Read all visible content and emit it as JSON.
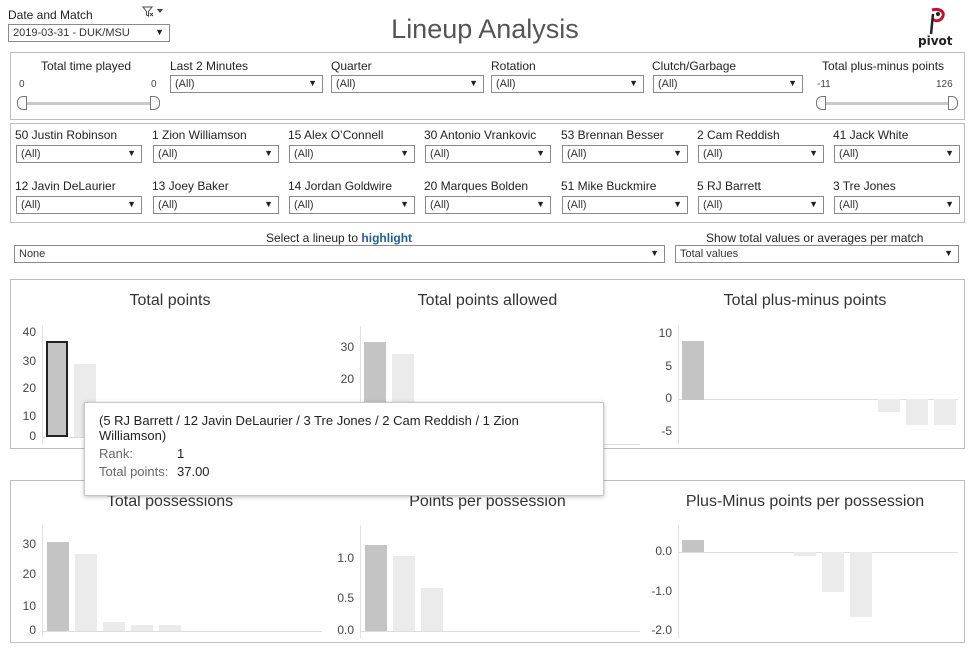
{
  "header": {
    "date_label": "Date and Match",
    "date_value": "2019-03-31 - DUK/MSU",
    "title": "Lineup Analysis",
    "logo_text": "pivot",
    "filter_icon": "clear-filter-icon"
  },
  "filters_top": {
    "time_played": {
      "label": "Total time played",
      "min": "0",
      "max": "0"
    },
    "last2": {
      "label": "Last 2 Minutes",
      "value": "(All)"
    },
    "quarter": {
      "label": "Quarter",
      "value": "(All)"
    },
    "rotation": {
      "label": "Rotation",
      "value": "(All)"
    },
    "clutch": {
      "label": "Clutch/Garbage",
      "value": "(All)"
    },
    "plusminus": {
      "label": "Total plus-minus points",
      "min": "-11",
      "max": "126"
    }
  },
  "players": [
    {
      "label": "50 Justin Robinson",
      "value": "(All)"
    },
    {
      "label": "1 Zion Williamson",
      "value": "(All)"
    },
    {
      "label": "15 Alex O’Connell",
      "value": "(All)"
    },
    {
      "label": "30 Antonio Vrankovic",
      "value": "(All)"
    },
    {
      "label": "53 Brennan Besser",
      "value": "(All)"
    },
    {
      "label": "2 Cam Reddish",
      "value": "(All)"
    },
    {
      "label": "41 Jack White",
      "value": "(All)"
    },
    {
      "label": "12 Javin DeLaurier",
      "value": "(All)"
    },
    {
      "label": "13 Joey Baker",
      "value": "(All)"
    },
    {
      "label": "14 Jordan Goldwire",
      "value": "(All)"
    },
    {
      "label": "20 Marques Bolden",
      "value": "(All)"
    },
    {
      "label": "51 Mike Buckmire",
      "value": "(All)"
    },
    {
      "label": "5 RJ Barrett",
      "value": "(All)"
    },
    {
      "label": "3 Tre Jones",
      "value": "(All)"
    }
  ],
  "highlight": {
    "label_pre": "Select a lineup to ",
    "label_em": "highlight",
    "value": "None"
  },
  "totals": {
    "label": "Show total values or averages per match",
    "value": "Total values"
  },
  "colors": {
    "bar_dark": "#c4c4c4",
    "bar_light": "#ebebeb",
    "highlight_stroke": "#222222",
    "accent": "#1f5f9f"
  },
  "charts": [
    {
      "title": "Total points",
      "ticks": [
        "40",
        "30",
        "20",
        "10",
        "0"
      ]
    },
    {
      "title": "Total points allowed",
      "ticks": [
        "30",
        "20"
      ]
    },
    {
      "title": "Total plus-minus points",
      "ticks": [
        "10",
        "5",
        "0",
        "-5"
      ]
    },
    {
      "title": "Total possessions",
      "ticks": [
        "30",
        "20",
        "10",
        "0"
      ]
    },
    {
      "title": "Points per possession",
      "ticks": [
        "1.0",
        "0.5",
        "0.0"
      ]
    },
    {
      "title": "Plus-Minus points per possession",
      "ticks": [
        "0.0",
        "-1.0",
        "-2.0"
      ]
    }
  ],
  "chart_data": [
    {
      "type": "bar",
      "title": "Total points",
      "ylim": [
        0,
        40
      ],
      "values": [
        37,
        28
      ]
    },
    {
      "type": "bar",
      "title": "Total points allowed",
      "ylim": [
        15,
        33
      ],
      "values": [
        32,
        28
      ]
    },
    {
      "type": "bar",
      "title": "Total plus-minus points",
      "ylim": [
        -6,
        11
      ],
      "values": [
        9,
        -2,
        -4,
        -4
      ]
    },
    {
      "type": "bar",
      "title": "Total possessions",
      "ylim": [
        0,
        33
      ],
      "values": [
        31,
        27,
        3,
        2,
        2
      ]
    },
    {
      "type": "bar",
      "title": "Points per possession",
      "ylim": [
        0,
        1.3
      ],
      "values": [
        1.19,
        1.04,
        0.6
      ]
    },
    {
      "type": "bar",
      "title": "Plus-Minus points per possession",
      "ylim": [
        -2.2,
        0.4
      ],
      "values": [
        0.3,
        -0.1,
        -1.0,
        -1.65
      ]
    }
  ],
  "tooltip": {
    "lineup": "(5 RJ Barrett / 12 Javin DeLaurier / 3 Tre Jones / 2 Cam Reddish / 1 Zion Williamson)",
    "rank_label": "Rank:",
    "rank_value": "1",
    "points_label": "Total points:",
    "points_value": "37.00"
  }
}
